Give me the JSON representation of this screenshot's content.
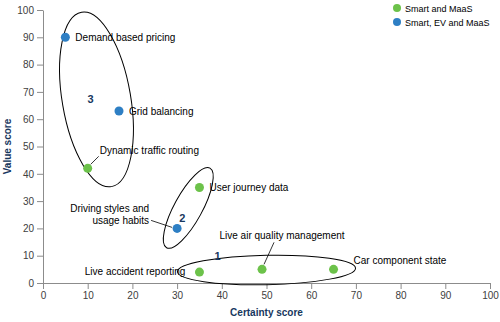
{
  "chart_data": {
    "type": "scatter",
    "xlabel": "Certainty score",
    "ylabel": "Value score",
    "xlim": [
      0,
      100
    ],
    "ylim": [
      0,
      100
    ],
    "xticks": [
      0,
      10,
      20,
      30,
      40,
      50,
      60,
      70,
      80,
      90,
      100
    ],
    "yticks": [
      0,
      10,
      20,
      30,
      40,
      50,
      60,
      70,
      80,
      90,
      100
    ],
    "legend": "top-right",
    "series": [
      {
        "name": "Smart and MaaS",
        "color": "#6cc24a",
        "marker": "circle",
        "x": [
          10,
          35,
          35,
          49,
          65
        ],
        "values": [
          42,
          35,
          4,
          5,
          5
        ],
        "labels": [
          "Dynamic traffic routing",
          "User journey data",
          "Live accident reporting",
          "Live air quality management",
          "Car component state"
        ],
        "groups": [
          "3",
          "2",
          "1",
          "1",
          "1"
        ]
      },
      {
        "name": "Smart, EV and MaaS",
        "color": "#2e7fc4",
        "marker": "circle",
        "x": [
          5,
          17,
          30
        ],
        "values": [
          90,
          63,
          20
        ],
        "labels": [
          "Demand based pricing",
          "Grid balancing",
          "Driving styles and usage habits"
        ],
        "groups": [
          "3",
          "3",
          "2"
        ]
      }
    ]
  }
}
